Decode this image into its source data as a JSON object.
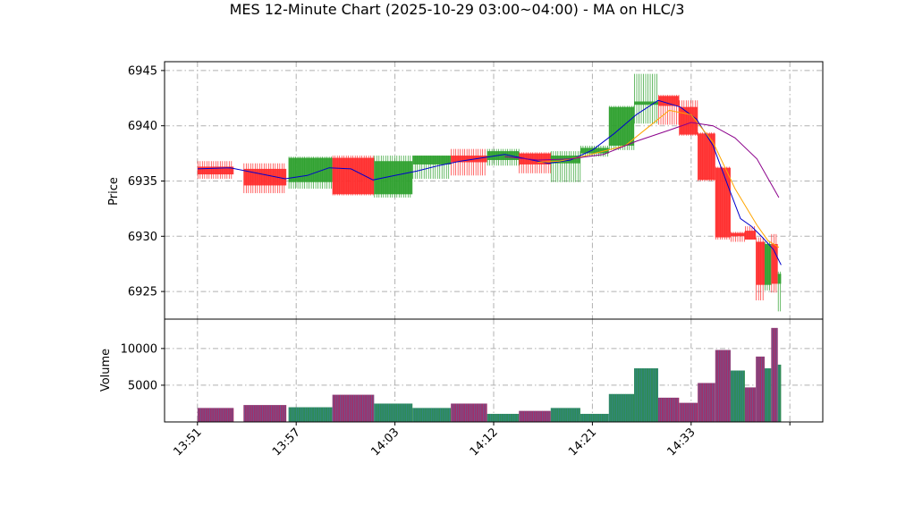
{
  "chart_data": [
    {
      "type": "candlestick",
      "title": "MES 12-Minute Chart (2025-10-29 03:00~04:00) - MA on HLC/3",
      "xlabel": "",
      "ylabel": "Price",
      "ylim": [
        6922.5,
        6945.8
      ],
      "yticks": [
        "6925",
        "6930",
        "6935",
        "6940",
        "6945"
      ],
      "ytick_values": [
        6925,
        6930,
        6935,
        6940,
        6945
      ],
      "xtick_labels": [
        "13:51",
        "13:57",
        "14:03",
        "14:12",
        "14:21",
        "14:33"
      ],
      "x_domain": [
        0,
        60
      ],
      "xtick_positions": [
        3.0,
        12.0,
        21.0,
        30.0,
        39.0,
        48.0
      ],
      "grid": true,
      "colors": {
        "up": "#2ca02c",
        "down": "#ff2a2a",
        "ma_fast": "#0000cc",
        "ma_mid": "#ffa500",
        "ma_slow": "#8b008b",
        "grid": "#b0b0b0"
      },
      "candles": [
        {
          "start": 3.0,
          "end": 6.3,
          "open": 6936.3,
          "high": 6936.8,
          "low": 6935.2,
          "close": 6935.6
        },
        {
          "start": 7.2,
          "end": 11.1,
          "open": 6936.1,
          "high": 6936.6,
          "low": 6933.9,
          "close": 6934.6
        },
        {
          "start": 11.3,
          "end": 15.3,
          "open": 6934.9,
          "high": 6937.2,
          "low": 6934.3,
          "close": 6937.1
        },
        {
          "start": 15.3,
          "end": 19.1,
          "open": 6937.1,
          "high": 6937.3,
          "low": 6933.7,
          "close": 6933.8
        },
        {
          "start": 19.1,
          "end": 22.6,
          "open": 6933.8,
          "high": 6937.3,
          "low": 6933.5,
          "close": 6936.8
        },
        {
          "start": 22.6,
          "end": 26.1,
          "open": 6936.5,
          "high": 6937.3,
          "low": 6935.2,
          "close": 6937.3
        },
        {
          "start": 26.1,
          "end": 29.4,
          "open": 6937.3,
          "high": 6937.9,
          "low": 6935.5,
          "close": 6936.7
        },
        {
          "start": 29.4,
          "end": 32.3,
          "open": 6936.9,
          "high": 6937.9,
          "low": 6936.4,
          "close": 6937.7
        },
        {
          "start": 32.3,
          "end": 35.2,
          "open": 6937.5,
          "high": 6937.6,
          "low": 6935.7,
          "close": 6936.5
        },
        {
          "start": 35.2,
          "end": 37.9,
          "open": 6936.6,
          "high": 6937.7,
          "low": 6934.9,
          "close": 6937.3
        },
        {
          "start": 37.9,
          "end": 40.5,
          "open": 6937.5,
          "high": 6938.2,
          "low": 6937.2,
          "close": 6938.0
        },
        {
          "start": 40.5,
          "end": 42.8,
          "open": 6938.2,
          "high": 6941.8,
          "low": 6937.8,
          "close": 6941.7
        },
        {
          "start": 42.8,
          "end": 45.0,
          "open": 6941.9,
          "high": 6944.7,
          "low": 6940.2,
          "close": 6942.2
        },
        {
          "start": 45.0,
          "end": 46.9,
          "open": 6942.7,
          "high": 6942.8,
          "low": 6940.1,
          "close": 6941.8
        },
        {
          "start": 46.9,
          "end": 48.6,
          "open": 6941.7,
          "high": 6942.3,
          "low": 6939.1,
          "close": 6939.2
        },
        {
          "start": 48.6,
          "end": 50.2,
          "open": 6939.3,
          "high": 6939.4,
          "low": 6935.0,
          "close": 6935.1
        },
        {
          "start": 50.2,
          "end": 51.6,
          "open": 6936.2,
          "high": 6936.3,
          "low": 6929.7,
          "close": 6929.9
        },
        {
          "start": 51.6,
          "end": 52.9,
          "open": 6930.3,
          "high": 6930.4,
          "low": 6929.5,
          "close": 6930.0
        },
        {
          "start": 52.9,
          "end": 53.9,
          "open": 6930.5,
          "high": 6930.9,
          "low": 6929.7,
          "close": 6929.7
        },
        {
          "start": 53.9,
          "end": 54.7,
          "open": 6929.5,
          "high": 6929.9,
          "low": 6924.2,
          "close": 6925.6
        },
        {
          "start": 54.7,
          "end": 55.3,
          "open": 6925.6,
          "high": 6929.5,
          "low": 6925.1,
          "close": 6929.3
        },
        {
          "start": 55.3,
          "end": 55.9,
          "open": 6929.3,
          "high": 6930.2,
          "low": 6924.9,
          "close": 6925.7
        },
        {
          "start": 55.9,
          "end": 56.2,
          "open": 6925.7,
          "high": 6926.8,
          "low": 6923.2,
          "close": 6926.6
        }
      ],
      "series": [
        {
          "color": "#0000cc",
          "x": [
            3,
            6,
            9,
            11,
            13,
            15,
            17,
            19,
            21,
            23,
            25,
            27,
            29,
            31,
            33,
            35,
            37,
            39,
            41,
            43,
            45,
            47,
            48.5,
            50,
            51.5,
            52.5,
            53.5,
            54.5,
            55.5,
            56.2
          ],
          "y": [
            6936.1,
            6936.2,
            6935.6,
            6935.2,
            6935.5,
            6936.2,
            6936.1,
            6935.1,
            6935.5,
            6935.9,
            6936.4,
            6936.8,
            6937.1,
            6937.4,
            6937.0,
            6936.6,
            6936.9,
            6937.8,
            6939.3,
            6941.0,
            6942.3,
            6941.7,
            6940.6,
            6938.2,
            6934.2,
            6931.6,
            6930.9,
            6929.9,
            6928.8,
            6927.4
          ]
        },
        {
          "color": "#ffa500",
          "x": [
            34,
            36,
            38,
            40,
            42,
            44,
            46,
            48,
            50,
            52,
            54,
            55,
            56
          ],
          "y": [
            6936.7,
            6936.8,
            6937.2,
            6937.7,
            6938.2,
            6939.8,
            6941.4,
            6941.0,
            6938.5,
            6934.3,
            6931.0,
            6929.6,
            6929.0
          ]
        },
        {
          "color": "#8b008b",
          "x": [
            31,
            34,
            37,
            40,
            43,
            46,
            48,
            50,
            52,
            54,
            56
          ],
          "y": [
            6937.2,
            6936.9,
            6937.0,
            6937.4,
            6938.6,
            6939.6,
            6940.3,
            6940.0,
            6938.9,
            6937.0,
            6933.5
          ]
        }
      ]
    },
    {
      "type": "bar",
      "ylabel": "Volume",
      "ylim": [
        0,
        14000
      ],
      "yticks": [
        "5000",
        "10000"
      ],
      "ytick_values": [
        5000,
        10000
      ],
      "grid": true,
      "bars": [
        {
          "start": 3.0,
          "end": 6.3,
          "value": 1900,
          "up": false
        },
        {
          "start": 7.2,
          "end": 11.1,
          "value": 2300,
          "up": false
        },
        {
          "start": 11.3,
          "end": 15.3,
          "value": 2000,
          "up": true
        },
        {
          "start": 15.3,
          "end": 19.1,
          "value": 3700,
          "up": false
        },
        {
          "start": 19.1,
          "end": 22.6,
          "value": 2500,
          "up": true
        },
        {
          "start": 22.6,
          "end": 26.1,
          "value": 1900,
          "up": true
        },
        {
          "start": 26.1,
          "end": 29.4,
          "value": 2500,
          "up": false
        },
        {
          "start": 29.4,
          "end": 32.3,
          "value": 1100,
          "up": true
        },
        {
          "start": 32.3,
          "end": 35.2,
          "value": 1500,
          "up": false
        },
        {
          "start": 35.2,
          "end": 37.9,
          "value": 1900,
          "up": true
        },
        {
          "start": 37.9,
          "end": 40.5,
          "value": 1100,
          "up": true
        },
        {
          "start": 40.5,
          "end": 42.8,
          "value": 3800,
          "up": true
        },
        {
          "start": 42.8,
          "end": 45.0,
          "value": 7300,
          "up": true
        },
        {
          "start": 45.0,
          "end": 46.9,
          "value": 3300,
          "up": false
        },
        {
          "start": 46.9,
          "end": 48.6,
          "value": 2600,
          "up": false
        },
        {
          "start": 48.6,
          "end": 50.2,
          "value": 5300,
          "up": false
        },
        {
          "start": 50.2,
          "end": 51.6,
          "value": 9800,
          "up": false
        },
        {
          "start": 51.6,
          "end": 52.9,
          "value": 7000,
          "up": true
        },
        {
          "start": 52.9,
          "end": 53.9,
          "value": 4700,
          "up": false
        },
        {
          "start": 53.9,
          "end": 54.7,
          "value": 8900,
          "up": false
        },
        {
          "start": 54.7,
          "end": 55.3,
          "value": 7300,
          "up": true
        },
        {
          "start": 55.3,
          "end": 55.9,
          "value": 12800,
          "up": false
        },
        {
          "start": 55.9,
          "end": 56.2,
          "value": 7800,
          "up": true
        }
      ]
    }
  ]
}
